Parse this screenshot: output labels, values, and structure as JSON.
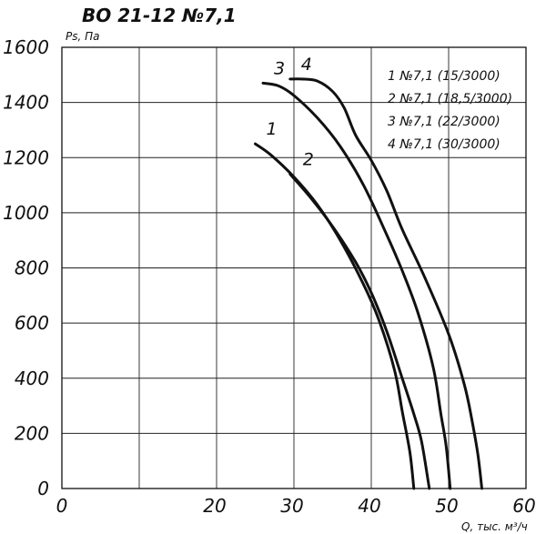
{
  "chart_data": {
    "type": "line",
    "title": "ВО 21-12 №7,1",
    "ylabel": "Ps, Па",
    "xlabel": "Q, тыс. м³/ч",
    "xlim": [
      0,
      60
    ],
    "ylim": [
      0,
      1600
    ],
    "xticks": [
      "0",
      "20",
      "30",
      "40",
      "50",
      "60"
    ],
    "yticks": [
      "0",
      "200",
      "400",
      "600",
      "800",
      "1000",
      "1200",
      "1400",
      "1600"
    ],
    "grid": true,
    "legend_position": "top-right",
    "legend": [
      "1 №7,1 (15/3000)",
      "2 №7,1 (18,5/3000)",
      "3 №7,1 (22/3000)",
      "4 №7,1 (30/3000)"
    ],
    "series": [
      {
        "name": "1",
        "points": [
          [
            25,
            1250
          ],
          [
            27,
            1210
          ],
          [
            30,
            1130
          ],
          [
            33,
            1030
          ],
          [
            36,
            900
          ],
          [
            39,
            740
          ],
          [
            41,
            610
          ],
          [
            43,
            430
          ],
          [
            44,
            280
          ],
          [
            45,
            130
          ],
          [
            45.5,
            0
          ]
        ]
      },
      {
        "name": "2",
        "points": [
          [
            29.5,
            1140
          ],
          [
            32,
            1060
          ],
          [
            35,
            950
          ],
          [
            38,
            820
          ],
          [
            40,
            710
          ],
          [
            42,
            570
          ],
          [
            44,
            400
          ],
          [
            45.5,
            270
          ],
          [
            46.5,
            170
          ],
          [
            47.5,
            0
          ]
        ]
      },
      {
        "name": "3",
        "points": [
          [
            26,
            1470
          ],
          [
            28,
            1460
          ],
          [
            30,
            1425
          ],
          [
            33,
            1345
          ],
          [
            36,
            1240
          ],
          [
            39,
            1100
          ],
          [
            42,
            920
          ],
          [
            44,
            790
          ],
          [
            46,
            640
          ],
          [
            48,
            440
          ],
          [
            49,
            270
          ],
          [
            49.7,
            150
          ],
          [
            50.2,
            0
          ]
        ]
      },
      {
        "name": "4",
        "points": [
          [
            29.5,
            1485
          ],
          [
            31,
            1485
          ],
          [
            33,
            1478
          ],
          [
            35,
            1440
          ],
          [
            36.5,
            1380
          ],
          [
            38,
            1280
          ],
          [
            40,
            1190
          ],
          [
            42,
            1080
          ],
          [
            44,
            940
          ],
          [
            47,
            760
          ],
          [
            50,
            560
          ],
          [
            52,
            380
          ],
          [
            53,
            250
          ],
          [
            53.8,
            120
          ],
          [
            54.3,
            0
          ]
        ]
      }
    ]
  }
}
